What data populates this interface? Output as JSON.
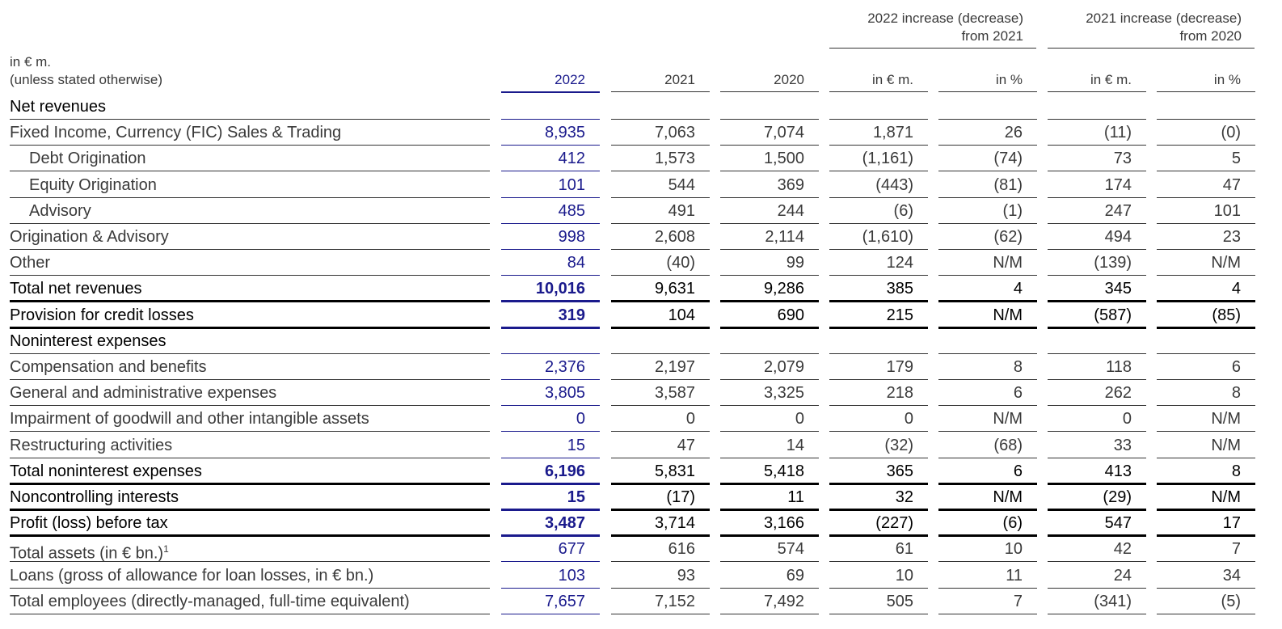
{
  "group_headers": [
    {
      "line1": "2022 increase (decrease)",
      "line2": "from 2021"
    },
    {
      "line1": "2021 increase (decrease)",
      "line2": "from 2020"
    }
  ],
  "unit_label": {
    "line1": "in € m.",
    "line2": "(unless stated otherwise)"
  },
  "columns": [
    "2022",
    "2021",
    "2020",
    "in € m.",
    "in %",
    "in € m.",
    "in %"
  ],
  "rows": [
    {
      "label": "Net revenues",
      "indent": false,
      "style": "heading",
      "values": [
        "",
        "",
        "",
        "",
        "",
        "",
        ""
      ]
    },
    {
      "label": "Fixed Income, Currency (FIC) Sales & Trading",
      "indent": false,
      "style": "normal",
      "values": [
        "8,935",
        "7,063",
        "7,074",
        "1,871",
        "26",
        "(11)",
        "(0)"
      ]
    },
    {
      "label": "Debt Origination",
      "indent": true,
      "style": "normal",
      "values": [
        "412",
        "1,573",
        "1,500",
        "(1,161)",
        "(74)",
        "73",
        "5"
      ]
    },
    {
      "label": "Equity Origination",
      "indent": true,
      "style": "normal",
      "values": [
        "101",
        "544",
        "369",
        "(443)",
        "(81)",
        "174",
        "47"
      ]
    },
    {
      "label": "Advisory",
      "indent": true,
      "style": "normal",
      "values": [
        "485",
        "491",
        "244",
        "(6)",
        "(1)",
        "247",
        "101"
      ]
    },
    {
      "label": "Origination & Advisory",
      "indent": false,
      "style": "normal",
      "values": [
        "998",
        "2,608",
        "2,114",
        "(1,610)",
        "(62)",
        "494",
        "23"
      ]
    },
    {
      "label": "Other",
      "indent": false,
      "style": "normal",
      "values": [
        "84",
        "(40)",
        "99",
        "124",
        "N/M",
        "(139)",
        "N/M"
      ]
    },
    {
      "label": "Total net revenues",
      "indent": false,
      "style": "total",
      "values": [
        "10,016",
        "9,631",
        "9,286",
        "385",
        "4",
        "345",
        "4"
      ]
    },
    {
      "label": "Provision for credit losses",
      "indent": false,
      "style": "total",
      "values": [
        "319",
        "104",
        "690",
        "215",
        "N/M",
        "(587)",
        "(85)"
      ]
    },
    {
      "label": "Noninterest expenses",
      "indent": false,
      "style": "heading",
      "values": [
        "",
        "",
        "",
        "",
        "",
        "",
        ""
      ]
    },
    {
      "label": "Compensation and benefits",
      "indent": false,
      "style": "normal",
      "values": [
        "2,376",
        "2,197",
        "2,079",
        "179",
        "8",
        "118",
        "6"
      ]
    },
    {
      "label": "General and administrative expenses",
      "indent": false,
      "style": "normal",
      "values": [
        "3,805",
        "3,587",
        "3,325",
        "218",
        "6",
        "262",
        "8"
      ]
    },
    {
      "label": "Impairment of goodwill and other intangible assets",
      "indent": false,
      "style": "normal",
      "values": [
        "0",
        "0",
        "0",
        "0",
        "N/M",
        "0",
        "N/M"
      ]
    },
    {
      "label": "Restructuring activities",
      "indent": false,
      "style": "normal",
      "values": [
        "15",
        "47",
        "14",
        "(32)",
        "(68)",
        "33",
        "N/M"
      ]
    },
    {
      "label": "Total noninterest expenses",
      "indent": false,
      "style": "total",
      "values": [
        "6,196",
        "5,831",
        "5,418",
        "365",
        "6",
        "413",
        "8"
      ]
    },
    {
      "label": "Noncontrolling interests",
      "indent": false,
      "style": "total",
      "values": [
        "15",
        "(17)",
        "11",
        "32",
        "N/M",
        "(29)",
        "N/M"
      ]
    },
    {
      "label": "Profit (loss) before tax",
      "indent": false,
      "style": "total",
      "values": [
        "3,487",
        "3,714",
        "3,166",
        "(227)",
        "(6)",
        "547",
        "17"
      ]
    },
    {
      "label": "Total assets (in € bn.)",
      "sup": "1",
      "indent": false,
      "style": "normal",
      "values": [
        "677",
        "616",
        "574",
        "61",
        "10",
        "42",
        "7"
      ]
    },
    {
      "label": "Loans (gross of allowance for loan losses, in € bn.)",
      "indent": false,
      "style": "normal",
      "values": [
        "103",
        "93",
        "69",
        "10",
        "11",
        "24",
        "34"
      ]
    },
    {
      "label": "Total employees (directly-managed, full-time equivalent)",
      "indent": false,
      "style": "normal",
      "values": [
        "7,657",
        "7,152",
        "7,492",
        "505",
        "7",
        "(341)",
        "(5)"
      ]
    }
  ],
  "colors": {
    "highlight": "#1a1a8c",
    "text": "#3a3a3a",
    "bold_text": "#000000"
  }
}
